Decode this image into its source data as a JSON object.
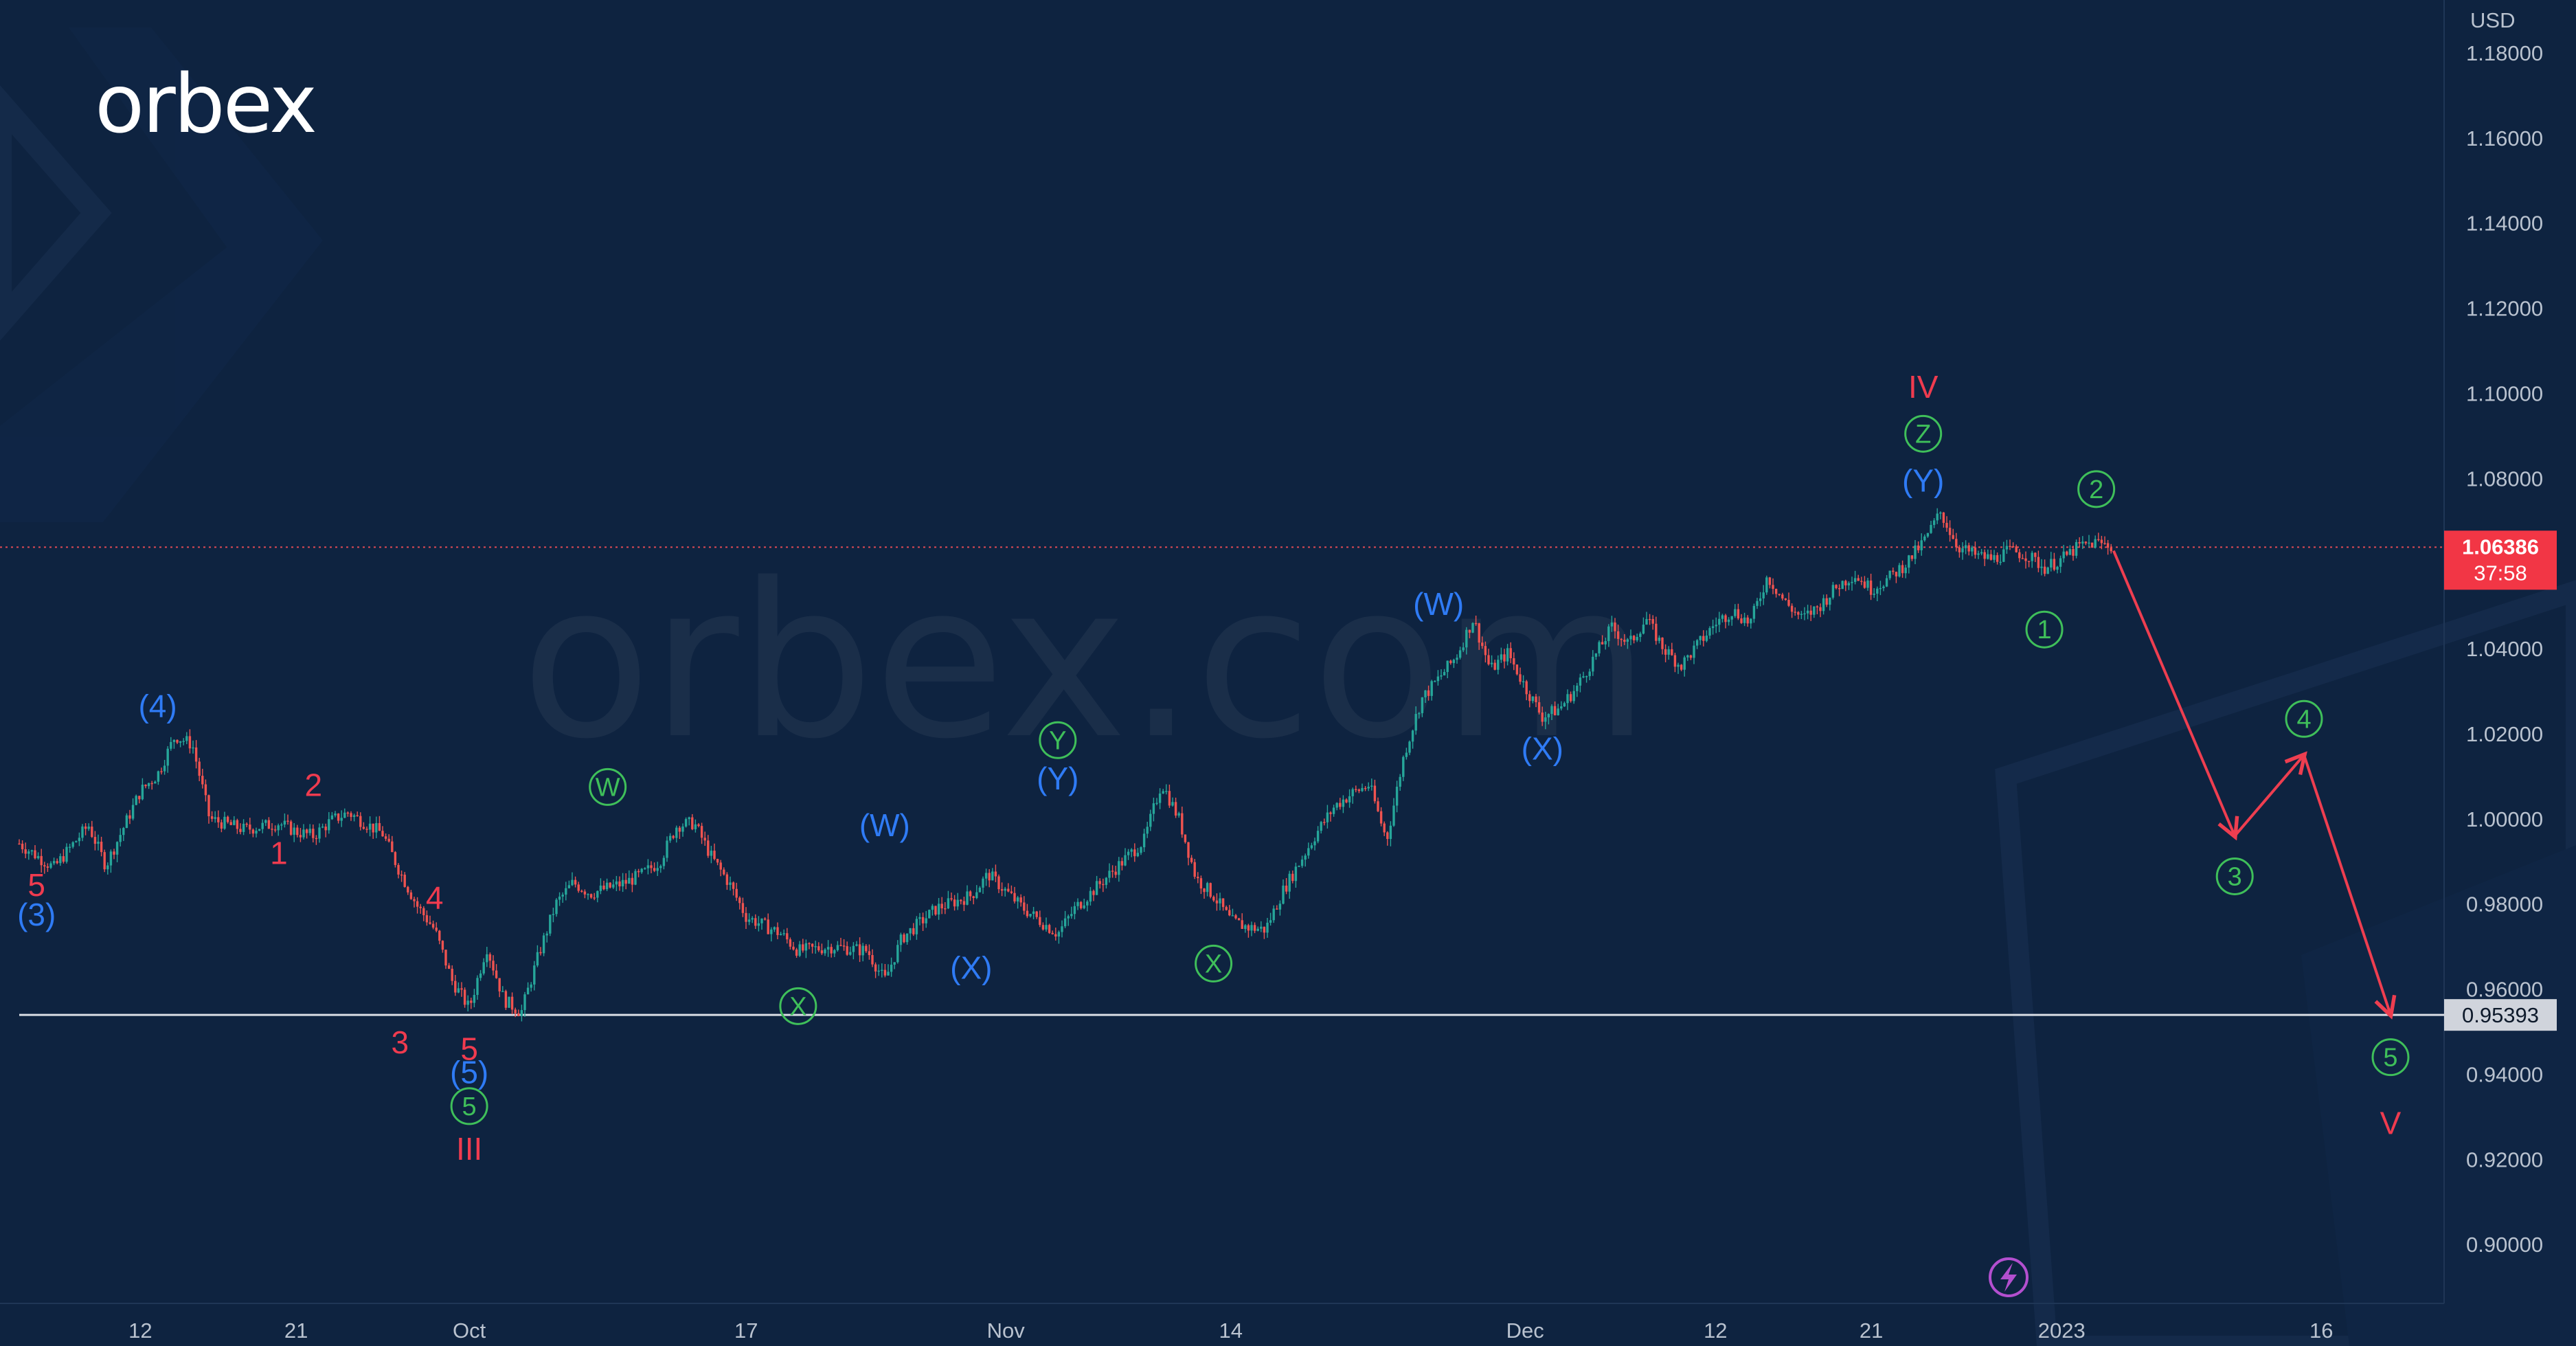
{
  "brand": {
    "logo": "orbex",
    "watermark": "orbex.com"
  },
  "colors": {
    "background": "#0e2340",
    "up_candle": "#26a69a",
    "down_candle": "#ef5350",
    "red_label": "#ef3b4f",
    "blue_label": "#2f7bf5",
    "green_label": "#3fbf5a",
    "arrow": "#ee3e50",
    "price_tag_bg": "#f23645",
    "support_tag_bg": "#d0d4dc"
  },
  "chart_data": {
    "type": "candlestick",
    "instrument_unit": "USD",
    "x_axis": {
      "ticks": [
        "12",
        "21",
        "Oct",
        "17",
        "Nov",
        "14",
        "Dec",
        "12",
        "21",
        "2023",
        "16"
      ],
      "range": [
        "2022-09-05",
        "2023-01-20"
      ]
    },
    "y_axis": {
      "unit": "USD",
      "ticks": [
        "1.18000",
        "1.16000",
        "1.14000",
        "1.12000",
        "1.10000",
        "1.08000",
        "1.06000",
        "1.04000",
        "1.02000",
        "1.00000",
        "0.98000",
        "0.96000",
        "0.94000",
        "0.92000",
        "0.90000"
      ],
      "range": [
        0.882,
        1.188
      ]
    },
    "current_price": {
      "value": "1.06386",
      "countdown": "37:58"
    },
    "support_level": {
      "value": "0.95393"
    },
    "price_path": [
      [
        "2022-09-05",
        0.9942
      ],
      [
        "2022-09-07",
        0.9885
      ],
      [
        "2022-09-09",
        0.9985
      ],
      [
        "2022-09-10",
        0.989
      ],
      [
        "2022-09-12",
        1.0065
      ],
      [
        "2022-09-13",
        1.0105
      ],
      [
        "2022-09-14",
        1.0195
      ],
      [
        "2022-09-15",
        1.0175
      ],
      [
        "2022-09-16",
        1.0
      ],
      [
        "2022-09-18",
        0.9975
      ],
      [
        "2022-09-20",
        0.999
      ],
      [
        "2022-09-21",
        0.997
      ],
      [
        "2022-09-22",
        0.996
      ],
      [
        "2022-09-23",
        0.9995
      ],
      [
        "2022-09-24",
        1.0015
      ],
      [
        "2022-09-26",
        0.9965
      ],
      [
        "2022-09-27",
        0.9875
      ],
      [
        "2022-09-28",
        0.9795
      ],
      [
        "2022-09-29",
        0.974
      ],
      [
        "2022-09-30",
        0.962
      ],
      [
        "2022-10-01",
        0.9555
      ],
      [
        "2022-10-02",
        0.97
      ],
      [
        "2022-10-03",
        0.9575
      ],
      [
        "2022-10-04",
        0.9545
      ],
      [
        "2022-10-05",
        0.968
      ],
      [
        "2022-10-06",
        0.98
      ],
      [
        "2022-10-07",
        0.985
      ],
      [
        "2022-10-08",
        0.9825
      ],
      [
        "2022-10-10",
        0.985
      ],
      [
        "2022-10-11",
        0.987
      ],
      [
        "2022-10-12",
        0.99
      ],
      [
        "2022-10-13",
        0.9985
      ],
      [
        "2022-10-14",
        0.999
      ],
      [
        "2022-10-15",
        0.991
      ],
      [
        "2022-10-16",
        0.985
      ],
      [
        "2022-10-17",
        0.977
      ],
      [
        "2022-10-19",
        0.973
      ],
      [
        "2022-10-20",
        0.969
      ],
      [
        "2022-10-22",
        0.97
      ],
      [
        "2022-10-24",
        0.969
      ],
      [
        "2022-10-25",
        0.962
      ],
      [
        "2022-10-26",
        0.972
      ],
      [
        "2022-10-28",
        0.979
      ],
      [
        "2022-10-30",
        0.982
      ],
      [
        "2022-10-31",
        0.987
      ],
      [
        "2022-11-01",
        0.983
      ],
      [
        "2022-11-02",
        0.979
      ],
      [
        "2022-11-03",
        0.976
      ],
      [
        "2022-11-04",
        0.973
      ],
      [
        "2022-11-05",
        0.979
      ],
      [
        "2022-11-07",
        0.987
      ],
      [
        "2022-11-08",
        0.991
      ],
      [
        "2022-11-09",
        0.995
      ],
      [
        "2022-11-10",
        1.0085
      ],
      [
        "2022-11-11",
        1.0
      ],
      [
        "2022-11-12",
        0.986
      ],
      [
        "2022-11-13",
        0.982
      ],
      [
        "2022-11-14",
        0.976
      ],
      [
        "2022-11-15",
        0.9745
      ],
      [
        "2022-11-16",
        0.974
      ],
      [
        "2022-11-17",
        0.983
      ],
      [
        "2022-11-18",
        0.99
      ],
      [
        "2022-11-19",
        0.997
      ],
      [
        "2022-11-20",
        1.003
      ],
      [
        "2022-11-21",
        1.006
      ],
      [
        "2022-11-22",
        1.008
      ],
      [
        "2022-11-23",
        0.995
      ],
      [
        "2022-11-24",
        1.015
      ],
      [
        "2022-11-25",
        1.028
      ],
      [
        "2022-11-26",
        1.033
      ],
      [
        "2022-11-27",
        1.038
      ],
      [
        "2022-11-28",
        1.047
      ],
      [
        "2022-11-29",
        1.035
      ],
      [
        "2022-11-30",
        1.039
      ],
      [
        "2022-12-01",
        1.031
      ],
      [
        "2022-12-02",
        1.024
      ],
      [
        "2022-12-03",
        1.026
      ],
      [
        "2022-12-04",
        1.031
      ],
      [
        "2022-12-05",
        1.038
      ],
      [
        "2022-12-06",
        1.045
      ],
      [
        "2022-12-07",
        1.041
      ],
      [
        "2022-12-08",
        1.047
      ],
      [
        "2022-12-09",
        1.04
      ],
      [
        "2022-12-10",
        1.036
      ],
      [
        "2022-12-12",
        1.046
      ],
      [
        "2022-12-13",
        1.049
      ],
      [
        "2022-12-14",
        1.046
      ],
      [
        "2022-12-15",
        1.057
      ],
      [
        "2022-12-16",
        1.051
      ],
      [
        "2022-12-17",
        1.047
      ],
      [
        "2022-12-18",
        1.05
      ],
      [
        "2022-12-19",
        1.0545
      ],
      [
        "2022-12-20",
        1.0575
      ],
      [
        "2022-12-21",
        1.054
      ],
      [
        "2022-12-22",
        1.0565
      ],
      [
        "2022-12-23",
        1.06
      ],
      [
        "2022-12-24",
        1.065
      ],
      [
        "2022-12-25",
        1.072
      ],
      [
        "2022-12-26",
        1.064
      ],
      [
        "2022-12-27",
        1.062
      ],
      [
        "2022-12-28",
        1.061
      ],
      [
        "2022-12-29",
        1.063
      ],
      [
        "2022-12-30",
        1.062
      ],
      [
        "2022-12-31",
        1.059
      ],
      [
        "2023-01-01",
        1.061
      ],
      [
        "2023-01-02",
        1.064
      ],
      [
        "2023-01-03",
        1.065
      ],
      [
        "2023-01-04",
        1.0639
      ]
    ],
    "forecast_path": [
      [
        "2023-01-04",
        1.063
      ],
      [
        "2023-01-11",
        0.996
      ],
      [
        "2023-01-15",
        1.015
      ],
      [
        "2023-01-20",
        0.954
      ]
    ],
    "wave_labels": [
      {
        "text": "(4)",
        "date": "2022-09-13",
        "price": 1.0265,
        "color": "blue",
        "circled": false
      },
      {
        "text": "5",
        "date": "2022-09-06",
        "price": 0.9845,
        "color": "red",
        "circled": false
      },
      {
        "text": "(3)",
        "date": "2022-09-06",
        "price": 0.9775,
        "color": "blue",
        "circled": false
      },
      {
        "text": "2",
        "date": "2022-09-22",
        "price": 1.008,
        "color": "red",
        "circled": false
      },
      {
        "text": "1",
        "date": "2022-09-20",
        "price": 0.992,
        "color": "red",
        "circled": false
      },
      {
        "text": "4",
        "date": "2022-09-29",
        "price": 0.9815,
        "color": "red",
        "circled": false
      },
      {
        "text": "3",
        "date": "2022-09-27",
        "price": 0.9475,
        "color": "red",
        "circled": false
      },
      {
        "text": "5",
        "date": "2022-10-01",
        "price": 0.946,
        "color": "red",
        "circled": false
      },
      {
        "text": "(5)",
        "date": "2022-10-01",
        "price": 0.9405,
        "color": "blue",
        "circled": false
      },
      {
        "text": "5",
        "date": "2022-10-01",
        "price": 0.9325,
        "color": "green",
        "circled": true
      },
      {
        "text": "III",
        "date": "2022-10-01",
        "price": 0.9225,
        "color": "red",
        "circled": false
      },
      {
        "text": "W",
        "date": "2022-10-09",
        "price": 1.0075,
        "color": "green",
        "circled": true
      },
      {
        "text": "X",
        "date": "2022-10-20",
        "price": 0.956,
        "color": "green",
        "circled": true
      },
      {
        "text": "(W)",
        "date": "2022-10-25",
        "price": 0.9985,
        "color": "blue",
        "circled": false
      },
      {
        "text": "(X)",
        "date": "2022-10-30",
        "price": 0.965,
        "color": "blue",
        "circled": false
      },
      {
        "text": "Y",
        "date": "2022-11-04",
        "price": 1.0185,
        "color": "green",
        "circled": true
      },
      {
        "text": "(Y)",
        "date": "2022-11-04",
        "price": 1.0095,
        "color": "blue",
        "circled": false
      },
      {
        "text": "X",
        "date": "2022-11-13",
        "price": 0.966,
        "color": "green",
        "circled": true
      },
      {
        "text": "(W)",
        "date": "2022-11-26",
        "price": 1.0505,
        "color": "blue",
        "circled": false
      },
      {
        "text": "(X)",
        "date": "2022-12-02",
        "price": 1.0165,
        "color": "blue",
        "circled": false
      },
      {
        "text": "IV",
        "date": "2022-12-24",
        "price": 1.1015,
        "color": "red",
        "circled": false
      },
      {
        "text": "Z",
        "date": "2022-12-24",
        "price": 1.0905,
        "color": "green",
        "circled": true
      },
      {
        "text": "(Y)",
        "date": "2022-12-24",
        "price": 1.0795,
        "color": "blue",
        "circled": false
      },
      {
        "text": "2",
        "date": "2023-01-03",
        "price": 1.0775,
        "color": "green",
        "circled": true
      },
      {
        "text": "1",
        "date": "2022-12-31",
        "price": 1.0445,
        "color": "green",
        "circled": true
      },
      {
        "text": "3",
        "date": "2023-01-11",
        "price": 0.9865,
        "color": "green",
        "circled": true
      },
      {
        "text": "4",
        "date": "2023-01-15",
        "price": 1.0235,
        "color": "green",
        "circled": true
      },
      {
        "text": "5",
        "date": "2023-01-20",
        "price": 0.944,
        "color": "green",
        "circled": true
      },
      {
        "text": "V",
        "date": "2023-01-20",
        "price": 0.9285,
        "color": "red",
        "circled": false
      }
    ],
    "grid": false,
    "legend": "none"
  }
}
